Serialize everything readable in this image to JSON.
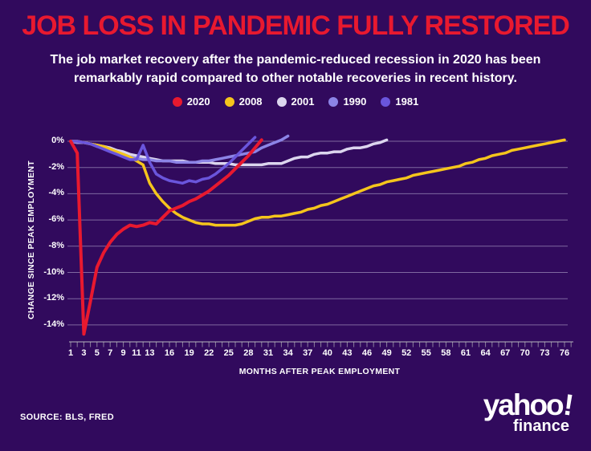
{
  "header": {
    "title": "JOB LOSS IN PANDEMIC FULLY RESTORED",
    "subtitle_line1": "The job market recovery after the pandemic-reduced recession in 2020 has been",
    "subtitle_line2": "remarkably rapid compared to other notable recoveries in recent history."
  },
  "legend": [
    {
      "label": "2020",
      "color": "#e8192f"
    },
    {
      "label": "2008",
      "color": "#f5c51c"
    },
    {
      "label": "2001",
      "color": "#dcd6ee"
    },
    {
      "label": "1990",
      "color": "#8c84e6"
    },
    {
      "label": "1981",
      "color": "#6a55dc"
    }
  ],
  "colors": {
    "background": "#310a5d",
    "title_red": "#e8192f",
    "text_white": "#ffffff",
    "gridline": "rgba(205,198,228,0.5)",
    "axis": "rgba(200,205,200,0.6)"
  },
  "chart_data": {
    "type": "line",
    "title": "JOB LOSS IN PANDEMIC FULLY RESTORED",
    "xlabel": "MONTHS AFTER PEAK EMPLOYMENT",
    "ylabel": "CHANGE SINCE PEAK EMPLOYMENT",
    "xlim": [
      1,
      76
    ],
    "ylim": [
      -16,
      0.5
    ],
    "grid": true,
    "legend_position": "top",
    "y_ticks": [
      "0%",
      "-2%",
      "-4%",
      "-6%",
      "-8%",
      "-10%",
      "-12%",
      "-14%"
    ],
    "y_tick_values": [
      0,
      -2,
      -4,
      -6,
      -8,
      -10,
      -12,
      -14
    ],
    "x_tick_labels": [
      1,
      3,
      5,
      7,
      9,
      11,
      13,
      16,
      19,
      22,
      25,
      28,
      31,
      34,
      37,
      40,
      43,
      46,
      49,
      52,
      55,
      58,
      61,
      64,
      67,
      70,
      73,
      76
    ],
    "series": [
      {
        "name": "2001",
        "color": "#dcd6ee",
        "points": [
          [
            1,
            0
          ],
          [
            2,
            -0.1
          ],
          [
            3,
            -0.1
          ],
          [
            4,
            -0.2
          ],
          [
            5,
            -0.3
          ],
          [
            6,
            -0.4
          ],
          [
            7,
            -0.5
          ],
          [
            8,
            -0.7
          ],
          [
            9,
            -0.8
          ],
          [
            10,
            -1.0
          ],
          [
            11,
            -1.1
          ],
          [
            12,
            -1.2
          ],
          [
            13,
            -1.3
          ],
          [
            14,
            -1.4
          ],
          [
            15,
            -1.5
          ],
          [
            16,
            -1.5
          ],
          [
            17,
            -1.5
          ],
          [
            18,
            -1.5
          ],
          [
            19,
            -1.6
          ],
          [
            20,
            -1.6
          ],
          [
            21,
            -1.6
          ],
          [
            22,
            -1.6
          ],
          [
            23,
            -1.7
          ],
          [
            24,
            -1.7
          ],
          [
            25,
            -1.7
          ],
          [
            26,
            -1.8
          ],
          [
            27,
            -1.8
          ],
          [
            28,
            -1.8
          ],
          [
            29,
            -1.8
          ],
          [
            30,
            -1.8
          ],
          [
            31,
            -1.7
          ],
          [
            32,
            -1.7
          ],
          [
            33,
            -1.7
          ],
          [
            34,
            -1.5
          ],
          [
            35,
            -1.3
          ],
          [
            36,
            -1.2
          ],
          [
            37,
            -1.2
          ],
          [
            38,
            -1.0
          ],
          [
            39,
            -0.9
          ],
          [
            40,
            -0.9
          ],
          [
            41,
            -0.8
          ],
          [
            42,
            -0.8
          ],
          [
            43,
            -0.6
          ],
          [
            44,
            -0.5
          ],
          [
            45,
            -0.5
          ],
          [
            46,
            -0.4
          ],
          [
            47,
            -0.2
          ],
          [
            48,
            -0.1
          ],
          [
            49,
            0.1
          ]
        ]
      },
      {
        "name": "1990",
        "color": "#8c84e6",
        "points": [
          [
            1,
            0
          ],
          [
            2,
            -0.1
          ],
          [
            3,
            -0.1
          ],
          [
            4,
            -0.2
          ],
          [
            5,
            -0.4
          ],
          [
            6,
            -0.5
          ],
          [
            7,
            -0.7
          ],
          [
            8,
            -0.9
          ],
          [
            9,
            -1.0
          ],
          [
            10,
            -1.2
          ],
          [
            11,
            -1.3
          ],
          [
            12,
            -1.4
          ],
          [
            13,
            -1.4
          ],
          [
            14,
            -1.5
          ],
          [
            15,
            -1.5
          ],
          [
            16,
            -1.5
          ],
          [
            17,
            -1.6
          ],
          [
            18,
            -1.6
          ],
          [
            19,
            -1.6
          ],
          [
            20,
            -1.6
          ],
          [
            21,
            -1.5
          ],
          [
            22,
            -1.5
          ],
          [
            23,
            -1.4
          ],
          [
            24,
            -1.3
          ],
          [
            25,
            -1.2
          ],
          [
            26,
            -1.1
          ],
          [
            27,
            -1.0
          ],
          [
            28,
            -0.9
          ],
          [
            29,
            -0.8
          ],
          [
            30,
            -0.5
          ],
          [
            31,
            -0.3
          ],
          [
            32,
            -0.1
          ],
          [
            33,
            0.1
          ],
          [
            34,
            0.4
          ]
        ]
      },
      {
        "name": "2008",
        "color": "#f5c51c",
        "points": [
          [
            1,
            0
          ],
          [
            2,
            0
          ],
          [
            3,
            -0.1
          ],
          [
            4,
            -0.2
          ],
          [
            5,
            -0.3
          ],
          [
            6,
            -0.4
          ],
          [
            7,
            -0.6
          ],
          [
            8,
            -0.8
          ],
          [
            9,
            -1.0
          ],
          [
            10,
            -1.2
          ],
          [
            11,
            -1.5
          ],
          [
            12,
            -1.8
          ],
          [
            13,
            -3.2
          ],
          [
            14,
            -4.0
          ],
          [
            15,
            -4.6
          ],
          [
            16,
            -5.1
          ],
          [
            17,
            -5.5
          ],
          [
            18,
            -5.8
          ],
          [
            19,
            -6.0
          ],
          [
            20,
            -6.2
          ],
          [
            21,
            -6.3
          ],
          [
            22,
            -6.3
          ],
          [
            23,
            -6.4
          ],
          [
            24,
            -6.4
          ],
          [
            25,
            -6.4
          ],
          [
            26,
            -6.4
          ],
          [
            27,
            -6.3
          ],
          [
            28,
            -6.1
          ],
          [
            29,
            -5.9
          ],
          [
            30,
            -5.8
          ],
          [
            31,
            -5.8
          ],
          [
            32,
            -5.7
          ],
          [
            33,
            -5.7
          ],
          [
            34,
            -5.6
          ],
          [
            35,
            -5.5
          ],
          [
            36,
            -5.4
          ],
          [
            37,
            -5.2
          ],
          [
            38,
            -5.1
          ],
          [
            39,
            -4.9
          ],
          [
            40,
            -4.8
          ],
          [
            41,
            -4.6
          ],
          [
            42,
            -4.4
          ],
          [
            43,
            -4.2
          ],
          [
            44,
            -4.0
          ],
          [
            45,
            -3.8
          ],
          [
            46,
            -3.6
          ],
          [
            47,
            -3.4
          ],
          [
            48,
            -3.3
          ],
          [
            49,
            -3.1
          ],
          [
            50,
            -3.0
          ],
          [
            51,
            -2.9
          ],
          [
            52,
            -2.8
          ],
          [
            53,
            -2.6
          ],
          [
            54,
            -2.5
          ],
          [
            55,
            -2.4
          ],
          [
            56,
            -2.3
          ],
          [
            57,
            -2.2
          ],
          [
            58,
            -2.1
          ],
          [
            59,
            -2.0
          ],
          [
            60,
            -1.9
          ],
          [
            61,
            -1.7
          ],
          [
            62,
            -1.6
          ],
          [
            63,
            -1.4
          ],
          [
            64,
            -1.3
          ],
          [
            65,
            -1.1
          ],
          [
            66,
            -1.0
          ],
          [
            67,
            -0.9
          ],
          [
            68,
            -0.7
          ],
          [
            69,
            -0.6
          ],
          [
            70,
            -0.5
          ],
          [
            71,
            -0.4
          ],
          [
            72,
            -0.3
          ],
          [
            73,
            -0.2
          ],
          [
            74,
            -0.1
          ],
          [
            75,
            0
          ],
          [
            76,
            0.1
          ]
        ]
      },
      {
        "name": "1981",
        "color": "#6a55dc",
        "points": [
          [
            1,
            0
          ],
          [
            2,
            0
          ],
          [
            3,
            -0.1
          ],
          [
            4,
            -0.2
          ],
          [
            5,
            -0.4
          ],
          [
            6,
            -0.6
          ],
          [
            7,
            -0.8
          ],
          [
            8,
            -1.0
          ],
          [
            9,
            -1.2
          ],
          [
            10,
            -1.4
          ],
          [
            11,
            -1.4
          ],
          [
            12,
            -0.3
          ],
          [
            13,
            -1.6
          ],
          [
            14,
            -2.5
          ],
          [
            15,
            -2.8
          ],
          [
            16,
            -3.0
          ],
          [
            17,
            -3.1
          ],
          [
            18,
            -3.2
          ],
          [
            19,
            -3.0
          ],
          [
            20,
            -3.1
          ],
          [
            21,
            -2.9
          ],
          [
            22,
            -2.8
          ],
          [
            23,
            -2.5
          ],
          [
            24,
            -2.1
          ],
          [
            25,
            -1.7
          ],
          [
            26,
            -1.2
          ],
          [
            27,
            -0.7
          ],
          [
            28,
            -0.2
          ],
          [
            29,
            0.3
          ]
        ]
      },
      {
        "name": "2020",
        "color": "#e8192f",
        "points": [
          [
            1,
            0
          ],
          [
            2,
            -0.9
          ],
          [
            3,
            -14.7
          ],
          [
            4,
            -12.2
          ],
          [
            5,
            -9.6
          ],
          [
            6,
            -8.5
          ],
          [
            7,
            -7.7
          ],
          [
            8,
            -7.1
          ],
          [
            9,
            -6.7
          ],
          [
            10,
            -6.4
          ],
          [
            11,
            -6.5
          ],
          [
            12,
            -6.4
          ],
          [
            13,
            -6.2
          ],
          [
            14,
            -6.3
          ],
          [
            15,
            -5.8
          ],
          [
            16,
            -5.3
          ],
          [
            17,
            -5.1
          ],
          [
            18,
            -4.9
          ],
          [
            19,
            -4.6
          ],
          [
            20,
            -4.4
          ],
          [
            21,
            -4.1
          ],
          [
            22,
            -3.8
          ],
          [
            23,
            -3.4
          ],
          [
            24,
            -3.0
          ],
          [
            25,
            -2.6
          ],
          [
            26,
            -2.1
          ],
          [
            27,
            -1.6
          ],
          [
            28,
            -1.1
          ],
          [
            29,
            -0.5
          ],
          [
            30,
            0.1
          ]
        ]
      }
    ]
  },
  "footer": {
    "source": "SOURCE: BLS, FRED",
    "brand_word": "yahoo",
    "brand_bang": "!",
    "brand_sub": "finance"
  }
}
